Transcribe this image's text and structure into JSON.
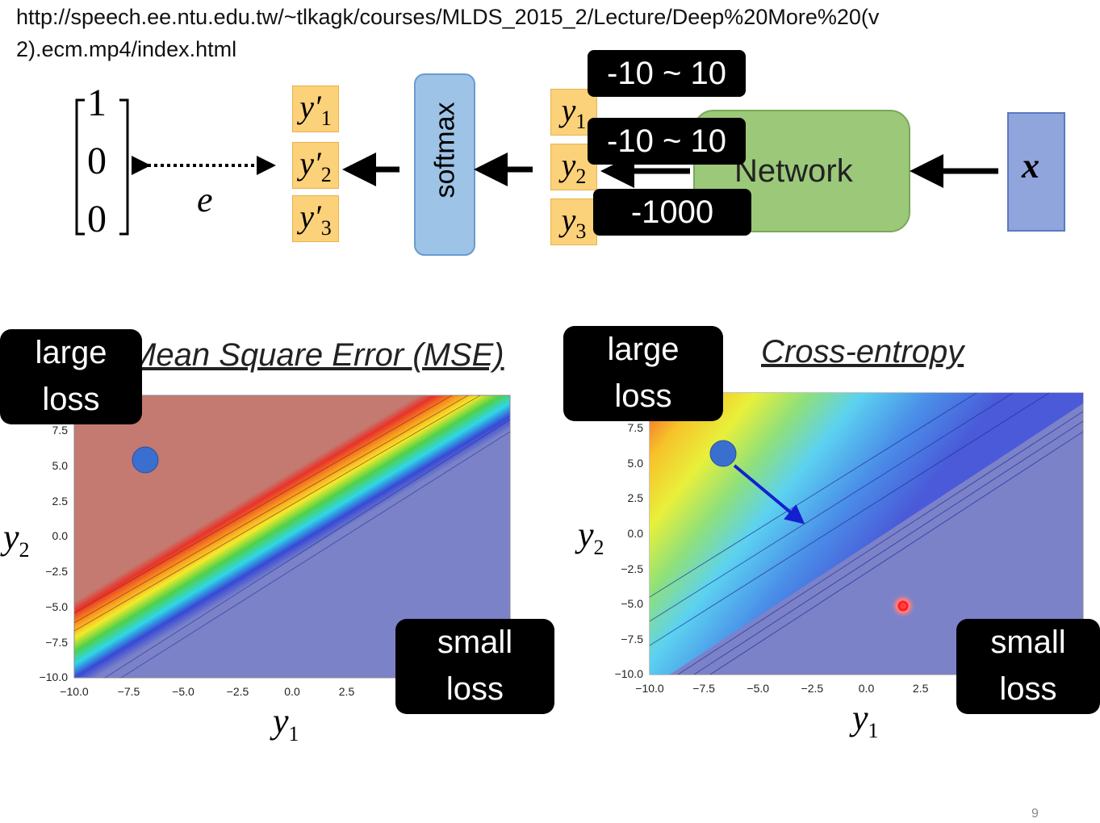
{
  "header": {
    "url_lines": [
      "http://speech.ee.ntu.edu.tw/~tlkagk/courses/MLDS_2015_2/Lecture/Deep%20More%20(v",
      "2).ecm.mp4/index.html"
    ]
  },
  "diagram": {
    "target": [
      "1",
      "0",
      "0"
    ],
    "error": "e",
    "softmax_outputs": [
      {
        "base": "y′",
        "sub": "1"
      },
      {
        "base": "y′",
        "sub": "2"
      },
      {
        "base": "y′",
        "sub": "3"
      }
    ],
    "softmax": "softmax",
    "outputs": [
      {
        "base": "y",
        "sub": "1"
      },
      {
        "base": "y",
        "sub": "2"
      },
      {
        "base": "y",
        "sub": "3"
      }
    ],
    "ranges": [
      "-10 ~ 10",
      "-10 ~ 10",
      "-1000"
    ],
    "network": "Network",
    "input": "x"
  },
  "plots": [
    {
      "title": "Mean Square Error (MSE)",
      "large": "large loss",
      "small": "small loss",
      "yticks": [
        "7.5",
        "5.0",
        "2.5",
        "0.0",
        "−2.5",
        "−5.0",
        "−7.5",
        "−10.0"
      ],
      "xticks": [
        "−10.0",
        "−7.5",
        "−5.0",
        "−2.5",
        "0.0",
        "2.5"
      ],
      "ylabel": {
        "base": "y",
        "sub": "2"
      },
      "xlabel": {
        "base": "y",
        "sub": "1"
      }
    },
    {
      "title": "Cross-entropy",
      "large": "large loss",
      "small": "small loss",
      "yticks": [
        "7.5",
        "5.0",
        "2.5",
        "0.0",
        "−2.5",
        "−5.0",
        "−7.5",
        "−10.0"
      ],
      "xticks": [
        "−10.0",
        "−7.5",
        "−5.0",
        "−2.5",
        "0.0",
        "2.5"
      ],
      "ylabel": {
        "base": "y",
        "sub": "2"
      },
      "xlabel": {
        "base": "y",
        "sub": "1"
      }
    }
  ],
  "footer": {
    "page": "9"
  }
}
